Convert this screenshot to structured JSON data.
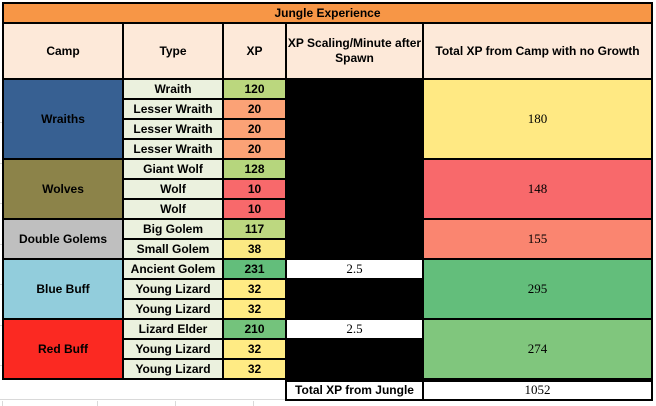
{
  "title": "Jungle Experience",
  "header": {
    "columns": [
      "Camp",
      "Type",
      "XP",
      "XP Scaling/Minute after Spawn",
      "Total XP from Camp with no Growth"
    ]
  },
  "colors": {
    "title_bg": "#F79646",
    "header_bg": "#FDE9D9",
    "type_bg": "#EBF1DE",
    "black_cell": "#000000",
    "white_cell": "#FFFFFF",
    "sheet_gridline": "#D9D9D9"
  },
  "sections": [
    {
      "camp": "Wraiths",
      "camp_bg": "#376092",
      "rows": [
        {
          "type": "Wraith",
          "xp": "120",
          "xp_bg": "#BBD77E"
        },
        {
          "type": "Lesser Wraith",
          "xp": "20",
          "xp_bg": "#FBA276"
        },
        {
          "type": "Lesser Wraith",
          "xp": "20",
          "xp_bg": "#FBA276"
        },
        {
          "type": "Lesser Wraith",
          "xp": "20",
          "xp_bg": "#FBA276"
        }
      ],
      "scaling": [
        {
          "span": 4,
          "text": "",
          "bg": "#000000"
        }
      ],
      "total": "180",
      "total_bg": "#FFE983"
    },
    {
      "camp": "Wolves",
      "camp_bg": "#8C8349",
      "rows": [
        {
          "type": "Giant Wolf",
          "xp": "128",
          "xp_bg": "#B6D67D"
        },
        {
          "type": "Wolf",
          "xp": "10",
          "xp_bg": "#F8696B"
        },
        {
          "type": "Wolf",
          "xp": "10",
          "xp_bg": "#F8696B"
        }
      ],
      "scaling": [
        {
          "span": 3,
          "text": "",
          "bg": "#000000"
        }
      ],
      "total": "148",
      "total_bg": "#F8696B"
    },
    {
      "camp": "Double Golems",
      "camp_bg": "#BFBFBF",
      "rows": [
        {
          "type": "Big Golem",
          "xp": "117",
          "xp_bg": "#BDD880"
        },
        {
          "type": "Small Golem",
          "xp": "38",
          "xp_bg": "#FBE983"
        }
      ],
      "scaling": [
        {
          "span": 2,
          "text": "",
          "bg": "#000000"
        }
      ],
      "total": "155",
      "total_bg": "#FA8570"
    },
    {
      "camp": "Blue Buff",
      "camp_bg": "#92CDDC",
      "rows": [
        {
          "type": "Ancient Golem",
          "xp": "231",
          "xp_bg": "#63BE7B"
        },
        {
          "type": "Young Lizard",
          "xp": "32",
          "xp_bg": "#FFEB84"
        },
        {
          "type": "Young Lizard",
          "xp": "32",
          "xp_bg": "#FFEB84"
        }
      ],
      "scaling": [
        {
          "span": 1,
          "text": "2.5",
          "bg": "#FFFFFF"
        },
        {
          "span": 2,
          "text": "",
          "bg": "#000000"
        }
      ],
      "total": "295",
      "total_bg": "#63BE7B"
    },
    {
      "camp": "Red Buff",
      "camp_bg": "#FB2922",
      "rows": [
        {
          "type": "Lizard Elder",
          "xp": "210",
          "xp_bg": "#74C37C"
        },
        {
          "type": "Young Lizard",
          "xp": "32",
          "xp_bg": "#FFEB84"
        },
        {
          "type": "Young Lizard",
          "xp": "32",
          "xp_bg": "#FFEB84"
        }
      ],
      "scaling": [
        {
          "span": 1,
          "text": "2.5",
          "bg": "#FFFFFF"
        },
        {
          "span": 2,
          "text": "",
          "bg": "#000000"
        }
      ],
      "total": "274",
      "total_bg": "#80C67D"
    }
  ],
  "footer": {
    "label": "Total XP from Jungle",
    "value": "1052"
  }
}
